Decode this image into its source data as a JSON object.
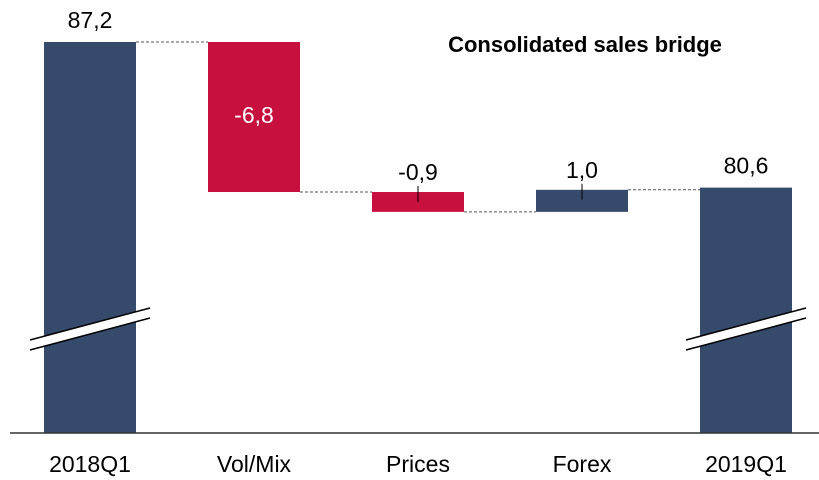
{
  "chart_data": {
    "type": "waterfall",
    "title": "Consolidated sales bridge",
    "categories": [
      "2018Q1",
      "Vol/Mix",
      "Prices",
      "Forex",
      "2019Q1"
    ],
    "values": [
      87.2,
      -6.8,
      -0.9,
      1.0,
      80.6
    ],
    "value_labels": [
      "87,2",
      "-6,8",
      "-0,9",
      "1,0",
      "80,6"
    ],
    "colors": [
      "#364a6b",
      "#c8103e",
      "#c8103e",
      "#364a6b",
      "#364a6b"
    ]
  }
}
